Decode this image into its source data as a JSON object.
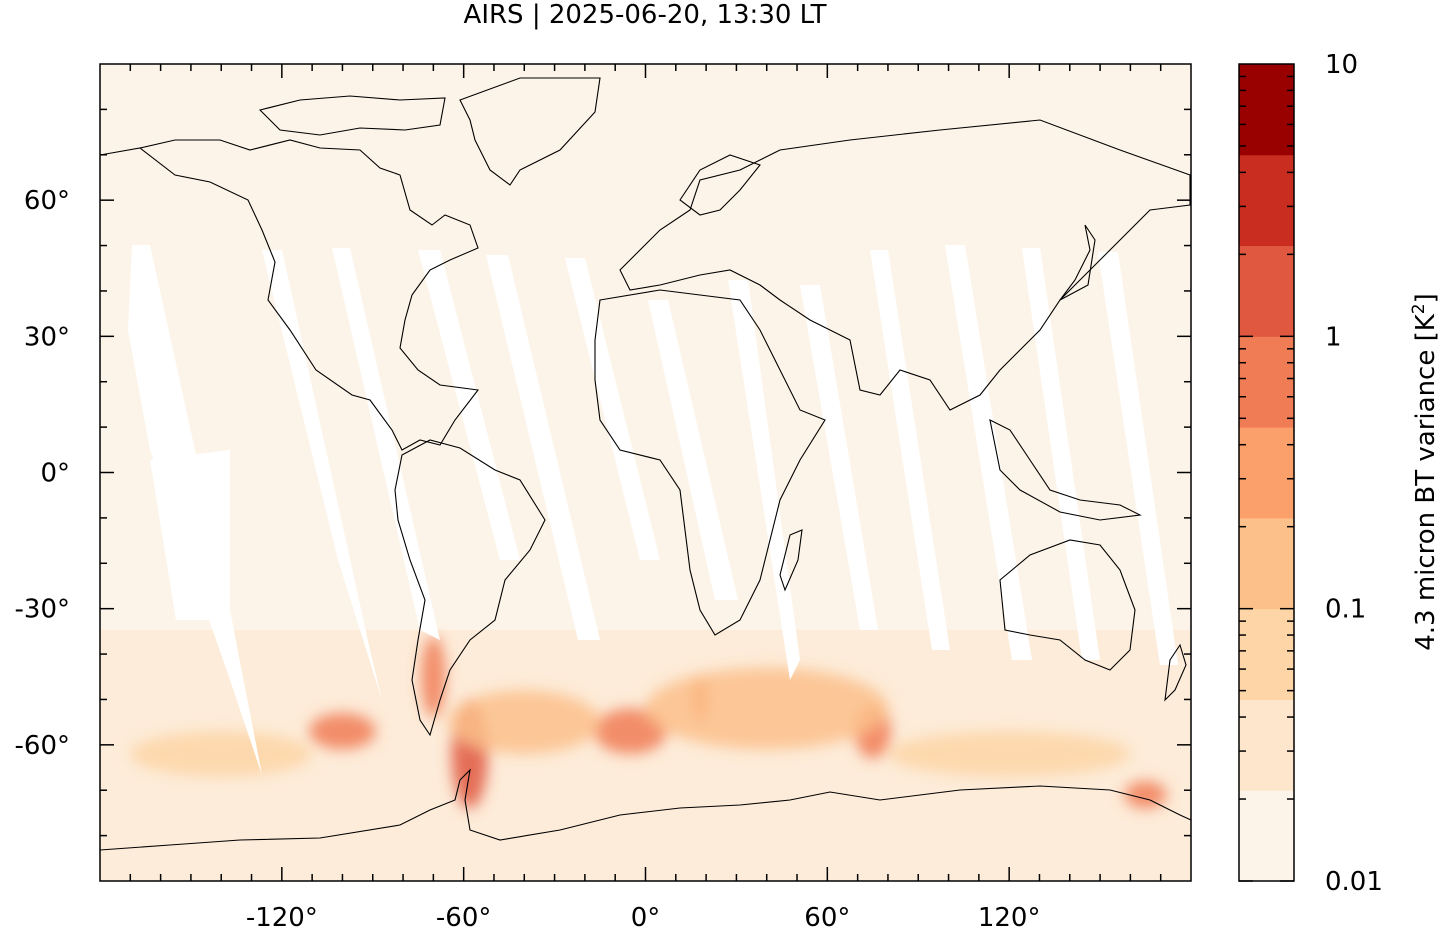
{
  "title": "AIRS | 2025-06-20, 13:30 LT",
  "map": {
    "projection": "plate carree",
    "lon_range": [
      -180,
      180
    ],
    "lat_range": [
      -90,
      90
    ],
    "lon_ticks": [
      {
        "value": -120,
        "label": "-120°"
      },
      {
        "value": -60,
        "label": "-60°"
      },
      {
        "value": 0,
        "label": "0°"
      },
      {
        "value": 60,
        "label": "60°"
      },
      {
        "value": 120,
        "label": "120°"
      }
    ],
    "lat_ticks": [
      {
        "value": 60,
        "label": "60°"
      },
      {
        "value": 30,
        "label": "30°"
      },
      {
        "value": 0,
        "label": "0°"
      },
      {
        "value": -30,
        "label": "-30°"
      },
      {
        "value": -60,
        "label": "-60°"
      }
    ],
    "background_color": "#fdf4e9",
    "gap_color": "#ffffff",
    "coastline_color": "#000000"
  },
  "colorbar": {
    "label_prefix": "4.3 micron BT variance [K",
    "label_sup": "2",
    "label_suffix": "]",
    "scale": "log",
    "range": [
      0.01,
      10
    ],
    "tick_labels": [
      {
        "value": 10,
        "label": "10"
      },
      {
        "value": 1,
        "label": "1"
      },
      {
        "value": 0.1,
        "label": "0.1"
      },
      {
        "value": 0.01,
        "label": "0.01"
      }
    ],
    "colors": [
      "#fdf4e9",
      "#fde6cc",
      "#fdd5a6",
      "#fcc08b",
      "#fb9f6b",
      "#f07c55",
      "#e05840",
      "#c92d20",
      "#990000"
    ]
  },
  "variance_regions": [
    {
      "lon": -58,
      "lat": -62,
      "rx": 6,
      "ry": 12,
      "level": 6
    },
    {
      "lon": -70,
      "lat": -45,
      "rx": 4,
      "ry": 9,
      "level": 5
    },
    {
      "lon": -100,
      "lat": -57,
      "rx": 11,
      "ry": 4,
      "level": 5
    },
    {
      "lon": -5,
      "lat": -57,
      "rx": 12,
      "ry": 5,
      "level": 5
    },
    {
      "lon": 18,
      "lat": -50,
      "rx": 3,
      "ry": 5,
      "level": 5
    },
    {
      "lon": 75,
      "lat": -57,
      "rx": 6,
      "ry": 6,
      "level": 5
    },
    {
      "lon": 165,
      "lat": -71,
      "rx": 7,
      "ry": 3,
      "level": 5
    },
    {
      "lon": -40,
      "lat": -55,
      "rx": 25,
      "ry": 7,
      "level": 3
    },
    {
      "lon": 40,
      "lat": -52,
      "rx": 40,
      "ry": 9,
      "level": 3
    },
    {
      "lon": -140,
      "lat": -62,
      "rx": 30,
      "ry": 5,
      "level": 2
    },
    {
      "lon": 120,
      "lat": -62,
      "rx": 40,
      "ry": 5,
      "level": 2
    }
  ]
}
